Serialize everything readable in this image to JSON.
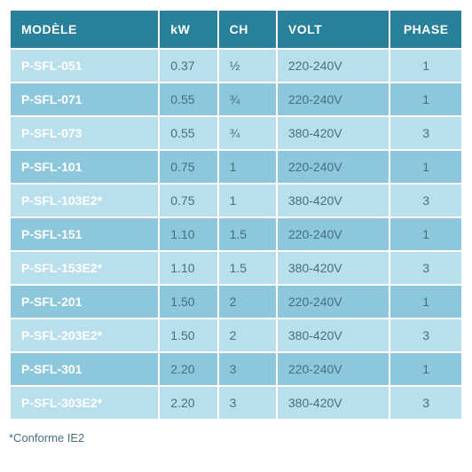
{
  "table": {
    "header_bg": "#28809a",
    "header_color": "#ffffff",
    "row_odd_bg": "#b9dfed",
    "row_even_bg": "#8dc7db",
    "model_text_color": "#ffffff",
    "data_text_color": "#44707f",
    "border_color": "#ffffff",
    "font_size_header": 14,
    "font_size_cell": 14,
    "columns": [
      {
        "key": "model",
        "label": "MODÈLE",
        "width": "33%",
        "align": "left"
      },
      {
        "key": "kw",
        "label": "kW",
        "width": "13%",
        "align": "left"
      },
      {
        "key": "ch",
        "label": "CH",
        "width": "13%",
        "align": "left"
      },
      {
        "key": "volt",
        "label": "VOLT",
        "width": "25%",
        "align": "left"
      },
      {
        "key": "phase",
        "label": "PHASE",
        "width": "16%",
        "align": "center"
      }
    ],
    "rows": [
      {
        "model": "P-SFL-051",
        "kw": "0.37",
        "ch": "½",
        "volt": "220-240V",
        "phase": "1"
      },
      {
        "model": "P-SFL-071",
        "kw": "0.55",
        "ch": "¾",
        "volt": "220-240V",
        "phase": "1"
      },
      {
        "model": "P-SFL-073",
        "kw": "0.55",
        "ch": "¾",
        "volt": "380-420V",
        "phase": "3"
      },
      {
        "model": "P-SFL-101",
        "kw": "0.75",
        "ch": "1",
        "volt": "220-240V",
        "phase": "1"
      },
      {
        "model": "P-SFL-103E2*",
        "kw": "0.75",
        "ch": "1",
        "volt": "380-420V",
        "phase": "3"
      },
      {
        "model": "P-SFL-151",
        "kw": "1.10",
        "ch": "1.5",
        "volt": "220-240V",
        "phase": "1"
      },
      {
        "model": "P-SFL-153E2*",
        "kw": "1.10",
        "ch": "1.5",
        "volt": "380-420V",
        "phase": "3"
      },
      {
        "model": "P-SFL-201",
        "kw": "1.50",
        "ch": "2",
        "volt": "220-240V",
        "phase": "1"
      },
      {
        "model": "P-SFL-203E2*",
        "kw": "1.50",
        "ch": "2",
        "volt": "380-420V",
        "phase": "3"
      },
      {
        "model": "P-SFL-301",
        "kw": "2.20",
        "ch": "3",
        "volt": "220-240V",
        "phase": "1"
      },
      {
        "model": "P-SFL-303E2*",
        "kw": "2.20",
        "ch": "3",
        "volt": "380-420V",
        "phase": "3"
      }
    ]
  },
  "footnote": "*Conforme IE2"
}
